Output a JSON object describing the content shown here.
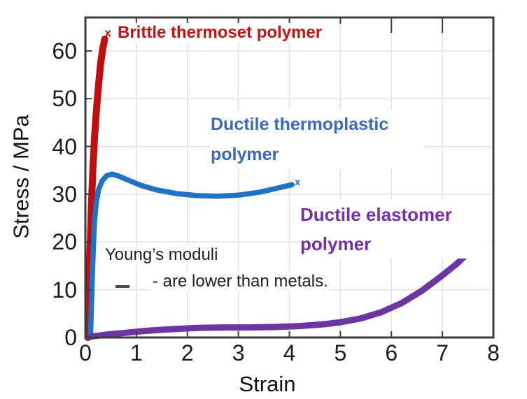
{
  "figure": {
    "background": "#ffffff"
  },
  "chart_data": {
    "type": "line",
    "title": "",
    "xlabel": "Strain",
    "ylabel": "Stress / MPa",
    "xlim": [
      0,
      8
    ],
    "ylim": [
      0,
      67
    ],
    "x_ticks": [
      0,
      1,
      2,
      3,
      4,
      5,
      6,
      7,
      8
    ],
    "y_ticks": [
      0,
      10,
      20,
      30,
      40,
      50,
      60
    ],
    "grid": true,
    "legend_position": "none",
    "axis_color": "#3c3c3c",
    "grid_color": "#e3e3e3",
    "tick_label_color": "#1c1c1c",
    "series": [
      {
        "name": "Brittle thermoset polymer",
        "color": "#c00d0d",
        "label_color": "#c41313",
        "line_width": 10,
        "end_marker": "x",
        "marker_size": 17,
        "end_marker_xy": [
          0.44,
          63.8
        ],
        "points": [
          [
            0.05,
            0
          ],
          [
            0.06,
            5
          ],
          [
            0.08,
            13
          ],
          [
            0.1,
            21
          ],
          [
            0.12,
            28
          ],
          [
            0.15,
            36
          ],
          [
            0.18,
            42
          ],
          [
            0.22,
            48
          ],
          [
            0.26,
            53
          ],
          [
            0.3,
            57.5
          ],
          [
            0.34,
            60.5
          ],
          [
            0.38,
            62.5
          ]
        ]
      },
      {
        "name": "Ductile thermoplastic polymer",
        "color": "#1f72c4",
        "label_color": "#3c69bb",
        "line_width": 7.5,
        "end_marker": "x",
        "marker_size": 14,
        "end_marker_xy": [
          4.16,
          32.6
        ],
        "points": [
          [
            0.1,
            0
          ],
          [
            0.12,
            7
          ],
          [
            0.14,
            14
          ],
          [
            0.16,
            20
          ],
          [
            0.18,
            24.5
          ],
          [
            0.21,
            28
          ],
          [
            0.26,
            31
          ],
          [
            0.33,
            32.8
          ],
          [
            0.42,
            33.9
          ],
          [
            0.52,
            34.2
          ],
          [
            0.65,
            33.8
          ],
          [
            0.85,
            32.9
          ],
          [
            1.1,
            31.8
          ],
          [
            1.4,
            30.9
          ],
          [
            1.8,
            30.1
          ],
          [
            2.2,
            29.7
          ],
          [
            2.6,
            29.6
          ],
          [
            3.0,
            29.8
          ],
          [
            3.4,
            30.4
          ],
          [
            3.7,
            31.1
          ],
          [
            4.05,
            32.0
          ]
        ]
      },
      {
        "name": "Ductile elastomer polymer",
        "color": "#6b35a2",
        "label_color": "#7231aa",
        "line_width": 9,
        "end_marker": "x",
        "marker_size": 16,
        "end_marker_xy": [
          7.63,
          20.4
        ],
        "points": [
          [
            0.05,
            0.1
          ],
          [
            0.4,
            0.6
          ],
          [
            0.8,
            1.0
          ],
          [
            1.2,
            1.4
          ],
          [
            1.7,
            1.75
          ],
          [
            2.2,
            2.0
          ],
          [
            2.7,
            2.1
          ],
          [
            3.2,
            2.1
          ],
          [
            3.7,
            2.2
          ],
          [
            4.2,
            2.4
          ],
          [
            4.7,
            2.8
          ],
          [
            5.0,
            3.2
          ],
          [
            5.4,
            4.0
          ],
          [
            5.8,
            5.3
          ],
          [
            6.2,
            7.2
          ],
          [
            6.6,
            9.8
          ],
          [
            7.0,
            13.0
          ],
          [
            7.3,
            15.6
          ],
          [
            7.55,
            18.2
          ]
        ]
      }
    ],
    "annotations": [
      {
        "text": "Young’s moduli",
        "color": "#1f1f1f"
      },
      {
        "text": "- are lower than metals.",
        "color": "#1f1f1f"
      }
    ]
  }
}
